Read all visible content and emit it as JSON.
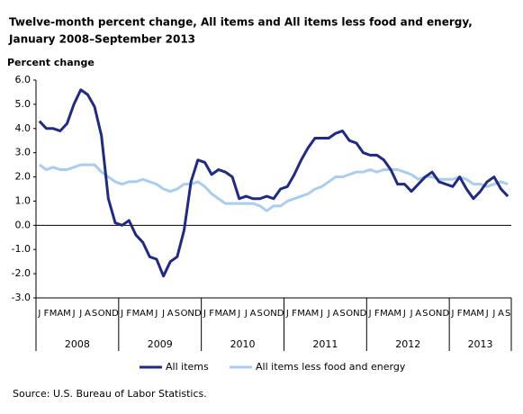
{
  "chart_data": {
    "type": "line",
    "title": "Twelve-month percent change, All items and All items less food and energy,",
    "subtitle": "January 2008–September 2013",
    "y_label": "Percent change",
    "source": "Source: U.S. Bureau of Labor Statistics.",
    "categories": [
      "J",
      "F",
      "M",
      "A",
      "M",
      "J",
      "J",
      "A",
      "S",
      "O",
      "N",
      "D",
      "J",
      "F",
      "M",
      "A",
      "M",
      "J",
      "J",
      "A",
      "S",
      "O",
      "N",
      "D",
      "J",
      "F",
      "M",
      "A",
      "M",
      "J",
      "J",
      "A",
      "S",
      "O",
      "N",
      "D",
      "J",
      "F",
      "M",
      "A",
      "M",
      "J",
      "J",
      "A",
      "S",
      "O",
      "N",
      "D",
      "J",
      "F",
      "M",
      "A",
      "M",
      "J",
      "J",
      "A",
      "S",
      "O",
      "N",
      "D",
      "J",
      "F",
      "M",
      "A",
      "M",
      "J",
      "J",
      "A",
      "S"
    ],
    "years": [
      "2008",
      "2009",
      "2010",
      "2011",
      "2012",
      "2013"
    ],
    "series": [
      {
        "name": "All items",
        "color": "#1f2a85",
        "values": [
          4.3,
          4.0,
          4.0,
          3.9,
          4.2,
          5.0,
          5.6,
          5.4,
          4.9,
          3.7,
          1.1,
          0.1,
          0.0,
          0.2,
          -0.4,
          -0.7,
          -1.3,
          -1.4,
          -2.1,
          -1.5,
          -1.3,
          -0.2,
          1.8,
          2.7,
          2.6,
          2.1,
          2.3,
          2.2,
          2.0,
          1.1,
          1.2,
          1.1,
          1.1,
          1.2,
          1.1,
          1.5,
          1.6,
          2.1,
          2.7,
          3.2,
          3.6,
          3.6,
          3.6,
          3.8,
          3.9,
          3.5,
          3.4,
          3.0,
          2.9,
          2.9,
          2.7,
          2.3,
          1.7,
          1.7,
          1.4,
          1.7,
          2.0,
          2.2,
          1.8,
          1.7,
          1.6,
          2.0,
          1.5,
          1.1,
          1.4,
          1.8,
          2.0,
          1.5,
          1.2
        ]
      },
      {
        "name": "All items less food and energy",
        "color": "#a9cdf0",
        "values": [
          2.5,
          2.3,
          2.4,
          2.3,
          2.3,
          2.4,
          2.5,
          2.5,
          2.5,
          2.2,
          2.0,
          1.8,
          1.7,
          1.8,
          1.8,
          1.9,
          1.8,
          1.7,
          1.5,
          1.4,
          1.5,
          1.7,
          1.7,
          1.8,
          1.6,
          1.3,
          1.1,
          0.9,
          0.9,
          0.9,
          0.9,
          0.9,
          0.8,
          0.6,
          0.8,
          0.8,
          1.0,
          1.1,
          1.2,
          1.3,
          1.5,
          1.6,
          1.8,
          2.0,
          2.0,
          2.1,
          2.2,
          2.2,
          2.3,
          2.2,
          2.3,
          2.3,
          2.3,
          2.2,
          2.1,
          1.9,
          2.0,
          2.0,
          1.9,
          1.9,
          1.9,
          2.0,
          1.9,
          1.7,
          1.7,
          1.6,
          1.7,
          1.8,
          1.7
        ]
      }
    ],
    "ylim": [
      -3,
      6
    ],
    "yticks": [
      {
        "value": 6,
        "label": "6.0"
      },
      {
        "value": 5,
        "label": "5.0"
      },
      {
        "value": 4,
        "label": "4.0"
      },
      {
        "value": 3,
        "label": "3.0"
      },
      {
        "value": 2,
        "label": "2.0"
      },
      {
        "value": 1,
        "label": "1.0"
      },
      {
        "value": 0,
        "label": "0.0"
      },
      {
        "value": -1,
        "label": "-1.0"
      },
      {
        "value": -2,
        "label": "-2.0"
      },
      {
        "value": -3,
        "label": "-3.0"
      }
    ],
    "grid": false
  }
}
